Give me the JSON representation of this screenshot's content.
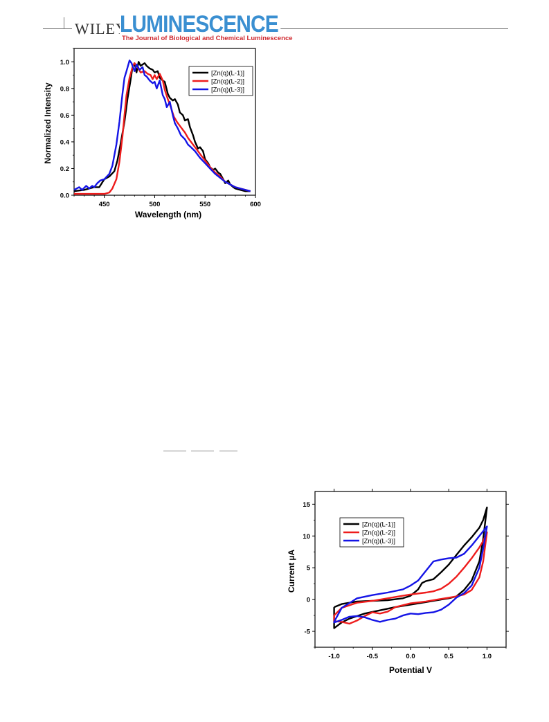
{
  "header": {
    "publisher": "WILEY",
    "journal_name": "LUMINESCENCE",
    "journal_subtitle": "The Journal of Biological and Chemical Luminescence"
  },
  "colors": {
    "black": "#000000",
    "red": "#ee1c1c",
    "blue": "#1414e6",
    "brand_blue": "#3a8fd1",
    "brand_red": "#d0282e"
  },
  "chart_data": [
    {
      "type": "line",
      "title": "",
      "xlabel": "Wavelength (nm)",
      "ylabel": "Normalized Intensity",
      "xlim": [
        420,
        600
      ],
      "ylim": [
        0.0,
        1.1
      ],
      "xticks": [
        450,
        500,
        550,
        600
      ],
      "yticks": [
        0.0,
        0.2,
        0.4,
        0.6,
        0.8,
        1.0
      ],
      "ytick_labels": [
        "0.0",
        "0.2",
        "0.4",
        "0.6",
        "0.8",
        "1.0"
      ],
      "legend_position": "top-right",
      "grid": false,
      "series": [
        {
          "name": "[Zn(q)(L-1)]",
          "color": "#000000",
          "x": [
            420,
            430,
            435,
            440,
            445,
            450,
            455,
            460,
            463,
            466,
            470,
            473,
            476,
            478,
            480,
            482,
            484,
            486,
            488,
            490,
            492,
            495,
            498,
            500,
            503,
            505,
            508,
            510,
            513,
            515,
            518,
            520,
            523,
            525,
            528,
            530,
            533,
            535,
            538,
            540,
            543,
            545,
            548,
            550,
            553,
            555,
            558,
            560,
            563,
            565,
            568,
            570,
            573,
            575,
            578,
            580,
            585,
            590,
            595
          ],
          "y": [
            0.03,
            0.04,
            0.05,
            0.06,
            0.06,
            0.12,
            0.14,
            0.18,
            0.26,
            0.38,
            0.55,
            0.72,
            0.86,
            0.96,
            0.99,
            0.92,
            1.0,
            0.97,
            0.98,
            0.99,
            0.97,
            0.95,
            0.94,
            0.92,
            0.93,
            0.88,
            0.86,
            0.85,
            0.76,
            0.73,
            0.71,
            0.72,
            0.68,
            0.62,
            0.6,
            0.56,
            0.57,
            0.51,
            0.45,
            0.4,
            0.35,
            0.36,
            0.33,
            0.27,
            0.24,
            0.21,
            0.19,
            0.2,
            0.17,
            0.16,
            0.12,
            0.09,
            0.11,
            0.08,
            0.06,
            0.05,
            0.04,
            0.03,
            0.03
          ]
        },
        {
          "name": "[Zn(q)(L-2)]",
          "color": "#ee1c1c",
          "x": [
            420,
            430,
            440,
            450,
            455,
            458,
            462,
            465,
            468,
            470,
            472,
            475,
            478,
            480,
            483,
            486,
            490,
            493,
            496,
            498,
            500,
            502,
            505,
            508,
            510,
            513,
            516,
            519,
            522,
            525,
            528,
            530,
            533,
            536,
            540,
            545,
            550,
            555,
            560,
            565,
            570,
            575,
            580,
            590,
            595
          ],
          "y": [
            0.01,
            0.01,
            0.01,
            0.01,
            0.02,
            0.05,
            0.12,
            0.25,
            0.44,
            0.6,
            0.75,
            0.88,
            0.96,
            0.99,
            0.96,
            0.92,
            0.93,
            0.91,
            0.9,
            0.87,
            0.9,
            0.87,
            0.91,
            0.86,
            0.79,
            0.72,
            0.66,
            0.59,
            0.55,
            0.52,
            0.49,
            0.47,
            0.43,
            0.4,
            0.36,
            0.31,
            0.26,
            0.21,
            0.17,
            0.14,
            0.1,
            0.08,
            0.06,
            0.04,
            0.03
          ]
        },
        {
          "name": "[Zn(q)(L-3)]",
          "color": "#1414e6",
          "x": [
            420,
            425,
            428,
            432,
            435,
            438,
            440,
            443,
            446,
            450,
            455,
            458,
            462,
            465,
            468,
            470,
            472,
            475,
            477,
            480,
            482,
            485,
            488,
            490,
            492,
            495,
            498,
            500,
            502,
            505,
            508,
            510,
            512,
            515,
            518,
            520,
            523,
            526,
            530,
            533,
            536,
            540,
            545,
            550,
            555,
            560,
            565,
            570,
            575,
            580,
            585,
            590,
            595
          ],
          "y": [
            0.04,
            0.06,
            0.04,
            0.07,
            0.05,
            0.07,
            0.06,
            0.09,
            0.11,
            0.12,
            0.16,
            0.22,
            0.38,
            0.55,
            0.76,
            0.88,
            0.93,
            1.01,
            0.99,
            0.93,
            0.98,
            0.94,
            0.96,
            0.9,
            0.89,
            0.86,
            0.84,
            0.85,
            0.8,
            0.86,
            0.75,
            0.72,
            0.66,
            0.7,
            0.6,
            0.54,
            0.5,
            0.45,
            0.42,
            0.38,
            0.36,
            0.33,
            0.28,
            0.24,
            0.2,
            0.16,
            0.13,
            0.1,
            0.08,
            0.06,
            0.05,
            0.04,
            0.03
          ]
        }
      ]
    },
    {
      "type": "line",
      "title": "",
      "xlabel": "Potential V",
      "ylabel": "Current µA",
      "xlim": [
        -1.25,
        1.25
      ],
      "ylim": [
        -7.5,
        17
      ],
      "xticks": [
        -1.0,
        -0.5,
        0.0,
        0.5,
        1.0
      ],
      "xtick_labels": [
        "-1.0",
        "-0.5",
        "0.0",
        "0.5",
        "1.0"
      ],
      "yticks": [
        -5,
        0,
        5,
        10,
        15
      ],
      "ytick_labels": [
        "-5",
        "0",
        "5",
        "10",
        "15"
      ],
      "legend_position": "top-left",
      "grid": false,
      "series": [
        {
          "name": "[Zn(q)(L-1)]",
          "color": "#000000",
          "x": [
            -1.0,
            -0.9,
            -0.7,
            -0.5,
            -0.3,
            -0.1,
            0.0,
            0.1,
            0.15,
            0.2,
            0.3,
            0.4,
            0.5,
            0.6,
            0.7,
            0.8,
            0.9,
            0.95,
            1.0,
            0.95,
            0.9,
            0.8,
            0.7,
            0.6,
            0.5,
            0.4,
            0.3,
            0.2,
            0.0,
            -0.2,
            -0.4,
            -0.6,
            -0.8,
            -0.9,
            -1.0
          ],
          "y": [
            -1.2,
            -0.7,
            -0.3,
            -0.2,
            -0.1,
            0.2,
            0.6,
            1.6,
            2.6,
            2.9,
            3.2,
            4.3,
            5.5,
            7.0,
            8.5,
            9.8,
            11.3,
            12.5,
            14.5,
            9.5,
            6.0,
            3.0,
            1.5,
            0.5,
            0.2,
            0.0,
            -0.2,
            -0.4,
            -0.8,
            -1.2,
            -1.7,
            -2.2,
            -3.0,
            -3.6,
            -4.5
          ]
        },
        {
          "name": "[Zn(q)(L-2)]",
          "color": "#ee1c1c",
          "x": [
            -1.0,
            -0.9,
            -0.7,
            -0.5,
            -0.3,
            -0.1,
            0.0,
            0.2,
            0.3,
            0.4,
            0.5,
            0.6,
            0.7,
            0.8,
            0.9,
            0.95,
            1.0,
            0.95,
            0.9,
            0.8,
            0.7,
            0.6,
            0.5,
            0.4,
            0.3,
            0.2,
            0.0,
            -0.2,
            -0.3,
            -0.4,
            -0.5,
            -0.6,
            -0.7,
            -0.8,
            -0.9,
            -1.0
          ],
          "y": [
            -2.5,
            -1.3,
            -0.5,
            -0.2,
            0.2,
            0.6,
            0.8,
            1.1,
            1.3,
            1.7,
            2.5,
            3.6,
            5.0,
            6.5,
            8.2,
            9.2,
            10.6,
            6.0,
            3.5,
            1.5,
            0.8,
            0.5,
            0.3,
            0.1,
            -0.1,
            -0.3,
            -0.6,
            -1.2,
            -1.9,
            -2.2,
            -2.0,
            -2.6,
            -3.3,
            -3.8,
            -3.5,
            -3.4
          ]
        },
        {
          "name": "[Zn(q)(L-3)]",
          "color": "#1414e6",
          "x": [
            -1.0,
            -0.9,
            -0.7,
            -0.5,
            -0.3,
            -0.1,
            0.0,
            0.1,
            0.2,
            0.3,
            0.4,
            0.5,
            0.6,
            0.7,
            0.8,
            0.9,
            1.0,
            0.95,
            0.9,
            0.8,
            0.7,
            0.6,
            0.5,
            0.4,
            0.3,
            0.2,
            0.1,
            0.0,
            -0.1,
            -0.2,
            -0.3,
            -0.4,
            -0.5,
            -0.6,
            -0.7,
            -0.8,
            -0.9,
            -1.0
          ],
          "y": [
            -3.5,
            -1.3,
            0.2,
            0.7,
            1.1,
            1.6,
            2.2,
            3.0,
            4.5,
            6.0,
            6.3,
            6.5,
            6.6,
            7.2,
            8.5,
            10.0,
            11.5,
            8.0,
            5.0,
            2.2,
            1.0,
            0.3,
            -0.8,
            -1.6,
            -2.0,
            -2.1,
            -2.3,
            -2.2,
            -2.5,
            -3.0,
            -3.2,
            -3.5,
            -3.2,
            -2.8,
            -2.6,
            -2.7,
            -3.2,
            -3.6
          ]
        }
      ]
    }
  ]
}
